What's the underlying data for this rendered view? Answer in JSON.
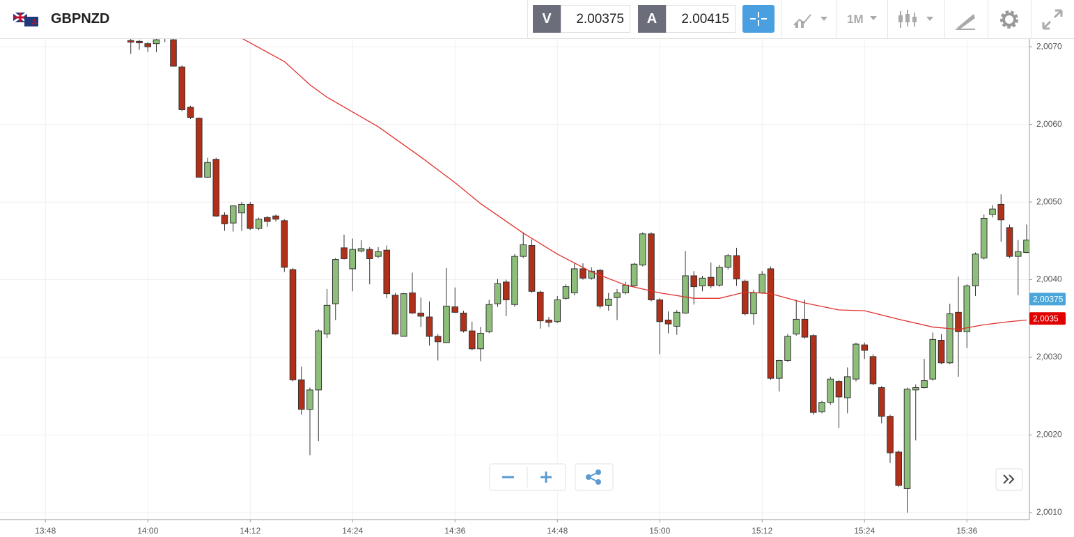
{
  "header": {
    "symbol": "GBPNZD",
    "bid_label": "V",
    "bid": "2.00375",
    "ask_label": "A",
    "ask": "2.00415",
    "timeframe": "1M"
  },
  "chart_data": {
    "type": "candlestick",
    "x": [
      "13:58",
      "13:59",
      "14:00",
      "14:01",
      "14:02",
      "14:03",
      "14:04",
      "14:05",
      "14:06",
      "14:07",
      "14:08",
      "14:09",
      "14:10",
      "14:11",
      "14:12",
      "14:13",
      "14:14",
      "14:15",
      "14:16",
      "14:17",
      "14:18",
      "14:19",
      "14:20",
      "14:21",
      "14:22",
      "14:23",
      "14:24",
      "14:25",
      "14:26",
      "14:27",
      "14:28",
      "14:29",
      "14:30",
      "14:31",
      "14:32",
      "14:33",
      "14:34",
      "14:35",
      "14:36",
      "14:37",
      "14:38",
      "14:39",
      "14:40",
      "14:41",
      "14:42",
      "14:43",
      "14:44",
      "14:45",
      "14:46",
      "14:47",
      "14:48",
      "14:49",
      "14:50",
      "14:51",
      "14:52",
      "14:53",
      "14:54",
      "14:55",
      "14:56",
      "14:57",
      "14:58",
      "14:59",
      "15:00",
      "15:01",
      "15:02",
      "15:03",
      "15:04",
      "15:05",
      "15:06",
      "15:07",
      "15:08",
      "15:09",
      "15:10",
      "15:11",
      "15:12",
      "15:13",
      "15:14",
      "15:15",
      "15:16",
      "15:17",
      "15:18",
      "15:19",
      "15:20",
      "15:21",
      "15:22",
      "15:23",
      "15:24",
      "15:25",
      "15:26",
      "15:27",
      "15:28",
      "15:29",
      "15:30",
      "15:31",
      "15:32",
      "15:33",
      "15:34",
      "15:35",
      "15:36",
      "15:37",
      "15:38",
      "15:39",
      "15:40",
      "15:41",
      "15:42",
      "15:43"
    ],
    "open": [
      2.00708,
      2.00707,
      2.00704,
      2.00704,
      2.00712,
      2.00709,
      2.00674,
      2.00622,
      2.00608,
      2.00532,
      2.00555,
      2.00483,
      2.00473,
      2.00486,
      2.00497,
      2.00466,
      2.0048,
      2.00482,
      2.00476,
      2.00413,
      2.00271,
      2.00233,
      2.00258,
      2.0033,
      2.00369,
      2.00441,
      2.00414,
      2.00437,
      2.00439,
      2.0043,
      2.00438,
      2.0038,
      2.00327,
      2.00383,
      2.00357,
      2.00352,
      2.00327,
      2.00319,
      2.00365,
      2.00357,
      2.00334,
      2.00311,
      2.00333,
      2.00369,
      2.00397,
      2.00368,
      2.0043,
      2.00444,
      2.00384,
      2.00348,
      2.00346,
      2.00376,
      2.00383,
      2.00414,
      2.00402,
      2.00412,
      2.00367,
      2.00377,
      2.00383,
      2.00392,
      2.00419,
      2.00459,
      2.00374,
      2.00348,
      2.0034,
      2.00357,
      2.00405,
      2.00392,
      2.00403,
      2.00393,
      2.00416,
      2.00431,
      2.00398,
      2.00356,
      2.00383,
      2.00414,
      2.00273,
      2.00296,
      2.0033,
      2.00349,
      2.00328,
      2.0023,
      2.00242,
      2.00269,
      2.00248,
      2.00272,
      2.00316,
      2.00301,
      2.00261,
      2.00224,
      2.00178,
      2.00131,
      2.00258,
      2.00261,
      2.00272,
      2.00322,
      2.00293,
      2.00358,
      2.00333,
      2.00392,
      2.00428,
      2.00484,
      2.00497,
      2.00467,
      2.0043,
      2.00435
    ],
    "high": [
      2.00711,
      2.00709,
      2.00706,
      2.0071,
      2.00722,
      2.00715,
      2.00676,
      2.00624,
      2.00609,
      2.00557,
      2.00557,
      2.00487,
      2.00496,
      2.005,
      2.005,
      2.0048,
      2.00482,
      2.00484,
      2.00478,
      2.00415,
      2.00288,
      2.00261,
      2.00336,
      2.00388,
      2.00428,
      2.00458,
      2.00453,
      2.00451,
      2.00442,
      2.00442,
      2.00444,
      2.00383,
      2.00383,
      2.00409,
      2.00377,
      2.00372,
      2.0033,
      2.00415,
      2.0039,
      2.0036,
      2.00346,
      2.00339,
      2.00374,
      2.00401,
      2.004,
      2.00433,
      2.00461,
      2.00452,
      2.00386,
      2.00352,
      2.00379,
      2.00394,
      2.00421,
      2.00421,
      2.00416,
      2.00414,
      2.00383,
      2.00388,
      2.00397,
      2.00422,
      2.00461,
      2.00461,
      2.00376,
      2.00359,
      2.00361,
      2.00437,
      2.00411,
      2.00405,
      2.00422,
      2.00419,
      2.00433,
      2.00441,
      2.004,
      2.00387,
      2.00411,
      2.00417,
      2.00297,
      2.0033,
      2.00374,
      2.00374,
      2.0033,
      2.00244,
      2.00275,
      2.00271,
      2.00287,
      2.00319,
      2.00319,
      2.00304,
      2.00263,
      2.00226,
      2.0018,
      2.00261,
      2.00265,
      2.00298,
      2.00332,
      2.0033,
      2.00369,
      2.00404,
      2.00394,
      2.00435,
      2.00484,
      2.00496,
      2.0051,
      2.00471,
      2.00451,
      2.00471
    ],
    "low": [
      2.00691,
      2.00696,
      2.00693,
      2.00693,
      2.00706,
      2.00675,
      2.00617,
      2.00607,
      2.00532,
      2.00531,
      2.00481,
      2.00463,
      2.00462,
      2.00463,
      2.00464,
      2.00464,
      2.00468,
      2.00475,
      2.0041,
      2.00269,
      2.00226,
      2.00174,
      2.00192,
      2.00325,
      2.00348,
      2.00426,
      2.00385,
      2.00435,
      2.00394,
      2.00428,
      2.00376,
      2.00329,
      2.00327,
      2.00356,
      2.00339,
      2.00315,
      2.00296,
      2.00319,
      2.00357,
      2.00332,
      2.00309,
      2.00295,
      2.00331,
      2.00365,
      2.00353,
      2.00365,
      2.00428,
      2.00383,
      2.00337,
      2.00339,
      2.00344,
      2.00374,
      2.0038,
      2.004,
      2.004,
      2.00363,
      2.0036,
      2.00348,
      2.00381,
      2.00391,
      2.00417,
      2.00372,
      2.00304,
      2.00331,
      2.00329,
      2.00356,
      2.00368,
      2.00385,
      2.00389,
      2.00391,
      2.00413,
      2.00392,
      2.00354,
      2.00342,
      2.00382,
      2.00271,
      2.00256,
      2.00294,
      2.00328,
      2.00324,
      2.00226,
      2.00228,
      2.00239,
      2.00209,
      2.00228,
      2.00269,
      2.00298,
      2.00264,
      2.00215,
      2.00164,
      2.00133,
      2.001,
      2.00193,
      2.0026,
      2.0027,
      2.00291,
      2.00291,
      2.00275,
      2.00312,
      2.00379,
      2.00426,
      2.0048,
      2.00449,
      2.00428,
      2.0038,
      2.00434
    ],
    "close": [
      2.00706,
      2.00705,
      2.007,
      2.00709,
      2.00718,
      2.00675,
      2.00619,
      2.00609,
      2.00532,
      2.00551,
      2.00482,
      2.00472,
      2.00495,
      2.00497,
      2.00466,
      2.00478,
      2.00475,
      2.00478,
      2.00416,
      2.00271,
      2.00233,
      2.00258,
      2.00334,
      2.00367,
      2.00426,
      2.00427,
      2.00439,
      2.0044,
      2.00427,
      2.00436,
      2.00382,
      2.0033,
      2.00382,
      2.00357,
      2.00353,
      2.00327,
      2.0032,
      2.00366,
      2.00358,
      2.00334,
      2.00311,
      2.00331,
      2.00368,
      2.00395,
      2.00374,
      2.0043,
      2.00445,
      2.00385,
      2.00347,
      2.00345,
      2.00374,
      2.00391,
      2.00414,
      2.00402,
      2.00411,
      2.00366,
      2.00375,
      2.00383,
      2.00393,
      2.0042,
      2.00459,
      2.00374,
      2.00346,
      2.00343,
      2.00358,
      2.00405,
      2.00391,
      2.00402,
      2.00392,
      2.00416,
      2.00431,
      2.00401,
      2.00356,
      2.00383,
      2.00407,
      2.00273,
      2.00296,
      2.00327,
      2.00349,
      2.00326,
      2.00229,
      2.00242,
      2.00272,
      2.00249,
      2.00275,
      2.00317,
      2.00309,
      2.00266,
      2.00224,
      2.00177,
      2.00135,
      2.00259,
      2.00261,
      2.0027,
      2.00323,
      2.00293,
      2.00356,
      2.00333,
      2.00392,
      2.00433,
      2.00479,
      2.00491,
      2.00477,
      2.0043,
      2.00436,
      2.00451
    ],
    "up_color": "#8dbf7a",
    "down_color": "#b1301a",
    "ma": {
      "color": "#e0312b",
      "x": [
        "14:11",
        "14:16",
        "14:19",
        "14:21",
        "14:27",
        "14:32",
        "14:36",
        "14:39",
        "14:44",
        "14:48",
        "14:52",
        "14:56",
        "15:00",
        "15:04",
        "15:07",
        "15:10",
        "15:13",
        "15:17",
        "15:21",
        "15:24",
        "15:28",
        "15:32",
        "15:35",
        "15:38",
        "15:41",
        "15:43"
      ],
      "values": [
        2.00711,
        2.00681,
        2.00651,
        2.00635,
        2.00597,
        2.00558,
        2.00525,
        2.00498,
        2.0046,
        2.00433,
        2.0041,
        2.00393,
        2.00383,
        2.00376,
        2.00376,
        2.00384,
        2.00382,
        2.0037,
        2.00361,
        2.0036,
        2.00349,
        2.00339,
        2.00336,
        2.00342,
        2.00346,
        2.00348
      ]
    },
    "price_markers": [
      {
        "value": 2.00375,
        "label": "2,00375",
        "color": "#4aa6d9"
      },
      {
        "value": 2.0035,
        "label": "2,0035",
        "color": "#e00000"
      }
    ],
    "xlim": [
      "13:43",
      "15:43"
    ],
    "xticks": [
      "13:48",
      "14:00",
      "14:12",
      "14:24",
      "14:36",
      "14:48",
      "15:00",
      "15:12",
      "15:24",
      "15:36"
    ],
    "ylim": [
      2.00091,
      2.0071
    ],
    "yticks": [
      {
        "value": 2.001,
        "label": "2,0010"
      },
      {
        "value": 2.002,
        "label": "2,0020"
      },
      {
        "value": 2.003,
        "label": "2,0030"
      },
      {
        "value": 2.004,
        "label": "2,0040"
      },
      {
        "value": 2.005,
        "label": "2,0050"
      },
      {
        "value": 2.006,
        "label": "2,0060"
      },
      {
        "value": 2.007,
        "label": "2,0070"
      }
    ],
    "grid": true
  }
}
